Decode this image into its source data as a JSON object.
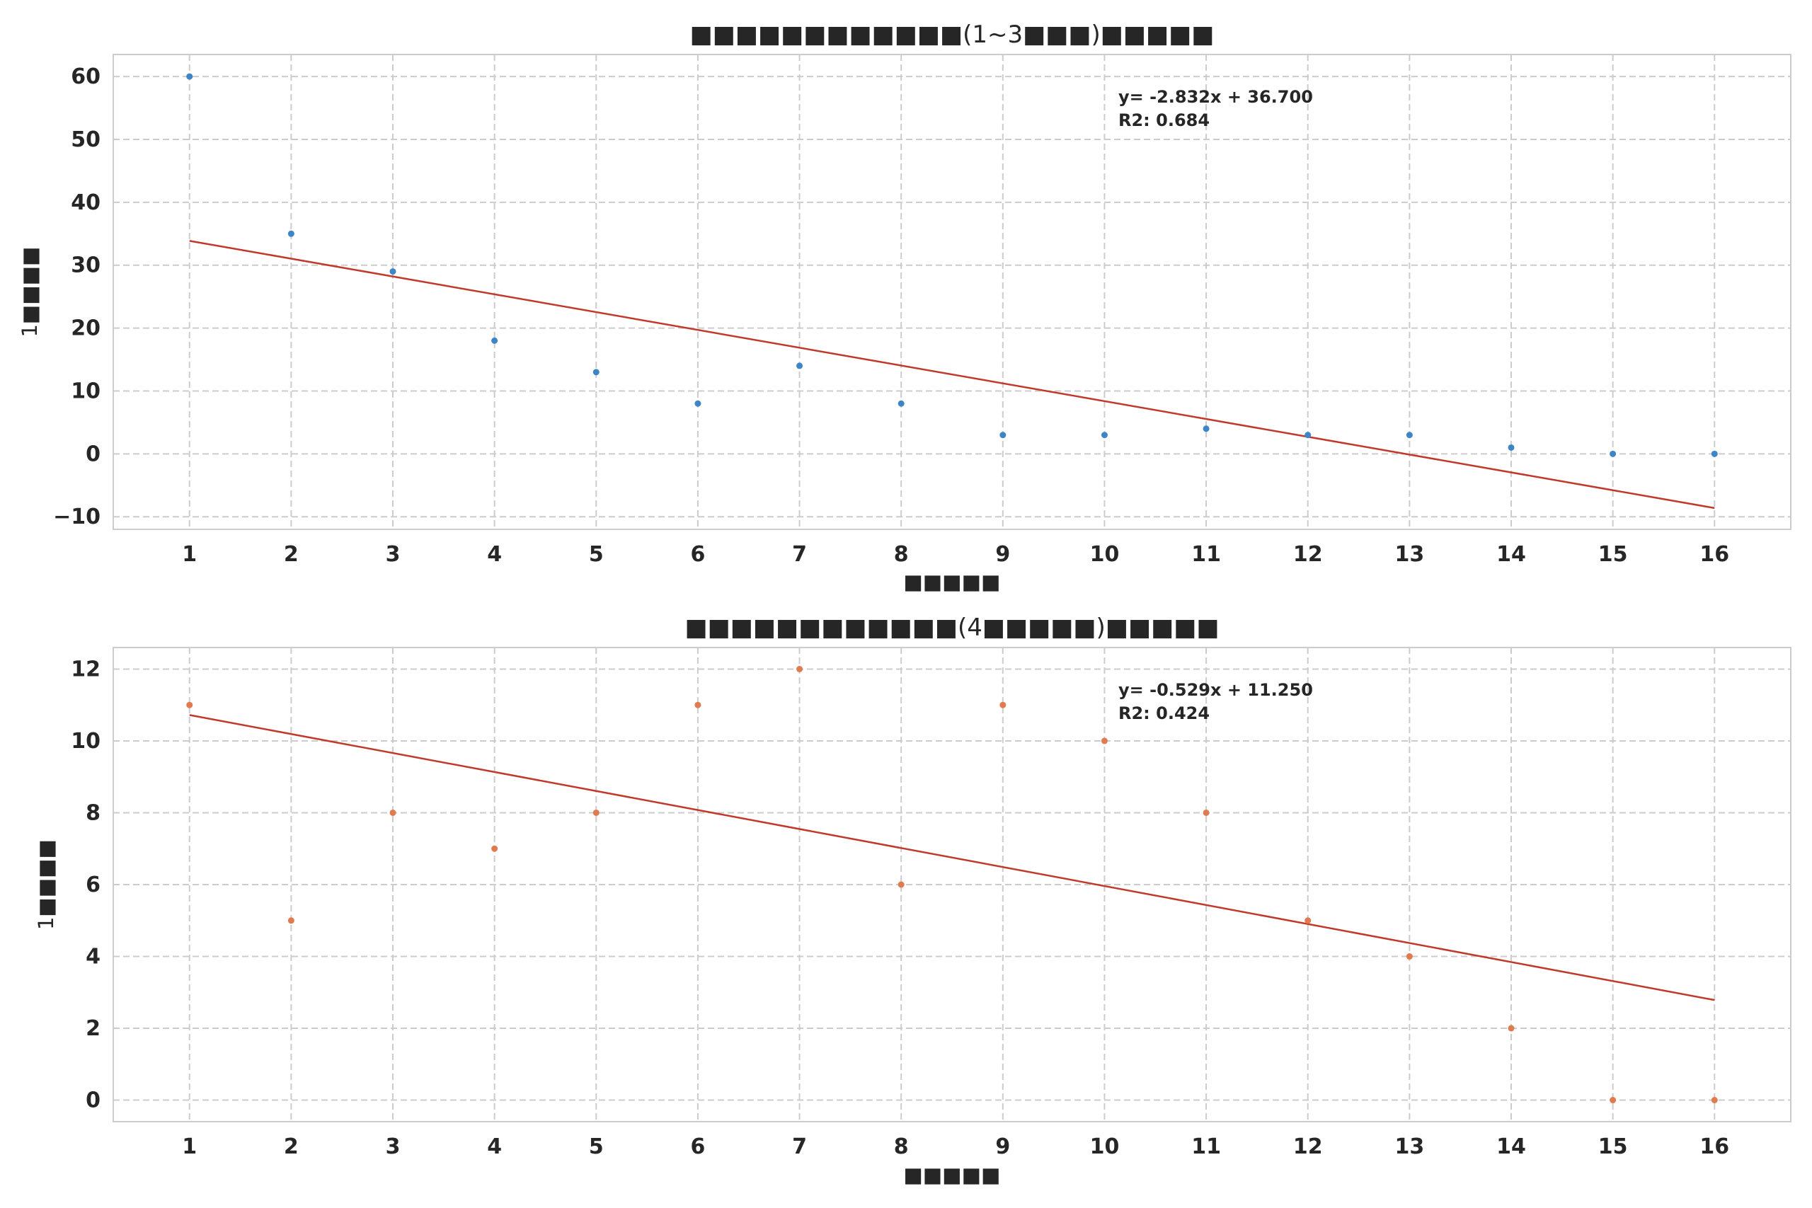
{
  "chart_data": [
    {
      "type": "scatter",
      "title": "■■■■■■■■■■■■(1~3■■■)■■■■■",
      "xlabel": "■■■■■",
      "ylabel": "1■■■■",
      "x": [
        1,
        2,
        3,
        4,
        5,
        6,
        7,
        8,
        9,
        10,
        11,
        12,
        13,
        14,
        15,
        16
      ],
      "x_ticks": [
        "1",
        "2",
        "3",
        "4",
        "5",
        "6",
        "7",
        "8",
        "9",
        "10",
        "11",
        "12",
        "13",
        "14",
        "15",
        "16"
      ],
      "series": [
        {
          "values": [
            60,
            35,
            29,
            18,
            13,
            8,
            14,
            8,
            3,
            3,
            4,
            3,
            3,
            1,
            0,
            0
          ],
          "color": "#3d85c6"
        }
      ],
      "fit": {
        "slope": -2.832,
        "intercept": 36.7,
        "color": "#c0392b"
      },
      "annotation": {
        "equation": "y= -2.832x + 36.700",
        "r2": "R2: 0.684"
      },
      "ylim": [
        -12,
        63.5
      ],
      "xlim": [
        0.25,
        16.75
      ],
      "y_ticks": [
        -10,
        0,
        10,
        20,
        30,
        40,
        50,
        60
      ],
      "grid": true
    },
    {
      "type": "scatter",
      "title": "■■■■■■■■■■■■(4■■■■■)■■■■■",
      "xlabel": "■■■■■",
      "ylabel": "1■■■■",
      "x": [
        1,
        2,
        3,
        4,
        5,
        6,
        7,
        8,
        9,
        10,
        11,
        12,
        13,
        14,
        15,
        16
      ],
      "x_ticks": [
        "1",
        "2",
        "3",
        "4",
        "5",
        "6",
        "7",
        "8",
        "9",
        "10",
        "11",
        "12",
        "13",
        "14",
        "15",
        "16"
      ],
      "series": [
        {
          "values": [
            11,
            5,
            8,
            7,
            8,
            11,
            12,
            6,
            11,
            10,
            8,
            5,
            4,
            2,
            0,
            0
          ],
          "color": "#e07b4f"
        }
      ],
      "fit": {
        "slope": -0.529,
        "intercept": 11.25,
        "color": "#c0392b"
      },
      "annotation": {
        "equation": "y= -0.529x + 11.250",
        "r2": "R2: 0.424"
      },
      "ylim": [
        -0.6,
        12.6
      ],
      "xlim": [
        0.25,
        16.75
      ],
      "y_ticks": [
        0,
        2,
        4,
        6,
        8,
        10,
        12
      ],
      "grid": true
    }
  ]
}
